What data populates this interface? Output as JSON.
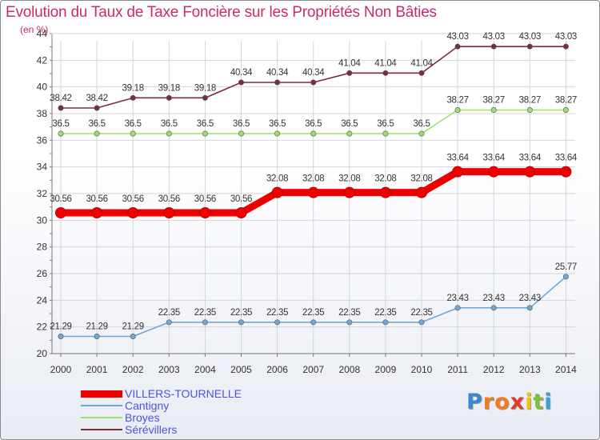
{
  "chart_data": {
    "type": "line",
    "title": "Evolution du Taux de Taxe Foncière sur les Propriétés Non Bâties",
    "ylabel": "(en %)",
    "xlabel": "",
    "ylim": [
      20,
      44
    ],
    "yticks": [
      20,
      22,
      24,
      26,
      28,
      30,
      32,
      34,
      36,
      38,
      40,
      42,
      44
    ],
    "grid": true,
    "x": [
      "2000",
      "2001",
      "2002",
      "2003",
      "2004",
      "2005",
      "2006",
      "2007",
      "2008",
      "2009",
      "2010",
      "2011",
      "2012",
      "2013",
      "2014"
    ],
    "series": [
      {
        "name": "VILLERS-TOURNELLE",
        "color": "#ee0000",
        "values": [
          30.56,
          30.56,
          30.56,
          30.56,
          30.56,
          30.56,
          32.08,
          32.08,
          32.08,
          32.08,
          32.08,
          33.64,
          33.64,
          33.64,
          33.64
        ],
        "labels": [
          "30.56",
          "30.56",
          "30.56",
          "30.56",
          "30.56",
          "30.56",
          "32.08",
          "32.08",
          "32.08",
          "32.08",
          "32.08",
          "33.64",
          "33.64",
          "33.64",
          "33.64"
        ]
      },
      {
        "name": "Cantigny",
        "color": "#6fa8d8",
        "values": [
          21.29,
          21.29,
          21.29,
          22.35,
          22.35,
          22.35,
          22.35,
          22.35,
          22.35,
          22.35,
          22.35,
          23.43,
          23.43,
          23.43,
          25.77
        ],
        "labels": [
          "21.29",
          "21.29",
          "21.29",
          "22.35",
          "22.35",
          "22.35",
          "22.35",
          "22.35",
          "22.35",
          "22.35",
          "22.35",
          "23.43",
          "23.43",
          "23.43",
          "25.77"
        ]
      },
      {
        "name": "Broyes",
        "color": "#9be06e",
        "values": [
          36.5,
          36.5,
          36.5,
          36.5,
          36.5,
          36.5,
          36.5,
          36.5,
          36.5,
          36.5,
          36.5,
          38.27,
          38.27,
          38.27,
          38.27
        ],
        "labels": [
          "36.5",
          "36.5",
          "36.5",
          "36.5",
          "36.5",
          "36.5",
          "36.5",
          "36.5",
          "36.5",
          "36.5",
          "36.5",
          "38.27",
          "38.27",
          "38.27",
          "38.27"
        ]
      },
      {
        "name": "Sérévillers",
        "color": "#7a2e3a",
        "values": [
          38.42,
          38.42,
          39.18,
          39.18,
          39.18,
          40.34,
          40.34,
          40.34,
          41.04,
          41.04,
          41.04,
          43.03,
          43.03,
          43.03,
          43.03
        ],
        "labels": [
          "38.42",
          "38.42",
          "39.18",
          "39.18",
          "39.18",
          "40.34",
          "40.34",
          "40.34",
          "41.04",
          "41.04",
          "41.04",
          "43.03",
          "43.03",
          "43.03",
          "43.03"
        ]
      }
    ],
    "legend_position": "bottom-left"
  },
  "branding": {
    "letters": [
      "P",
      "r",
      "o",
      "x",
      "i",
      "t",
      "i"
    ],
    "colors": [
      "#3b87d6",
      "#f07c1e",
      "#f07c1e",
      "#e33b2b",
      "#f2c40f",
      "#7bbf3a",
      "#3aa1d8"
    ]
  }
}
